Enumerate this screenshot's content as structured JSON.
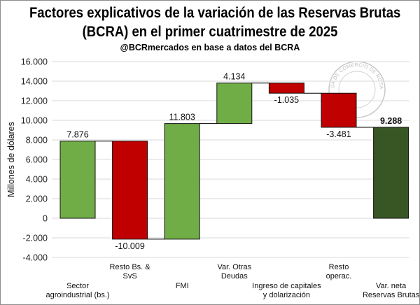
{
  "chart_data": {
    "type": "bar",
    "subtype": "waterfall",
    "title": [
      "Factores explicativos de la variación de las Reservas Brutas",
      "(BCRA) en el primer cuatrimestre de 2025"
    ],
    "subtitle": "@BCRmercados en base a datos del BCRA",
    "ylabel": "Millones de dólares",
    "xlabel": "",
    "ylim": [
      -4000,
      16000
    ],
    "yticks": [
      -4000,
      -2000,
      0,
      2000,
      4000,
      6000,
      8000,
      10000,
      12000,
      14000,
      16000
    ],
    "ytick_labels": [
      "-4.000",
      "-2.000",
      "0",
      "2.000",
      "4.000",
      "6.000",
      "8.000",
      "10.000",
      "12.000",
      "14.000",
      "16.000"
    ],
    "grid": true,
    "legend": "none",
    "colors": {
      "increase": "#70ad47",
      "decrease": "#c00000",
      "total": "#375623",
      "connector": "#000000"
    },
    "watermark": "BOLSA DE COMERCIO DE ROSARIO",
    "categories": [
      {
        "label": [
          "Sector",
          "agroindustrial (bs.)"
        ],
        "label_row": "low"
      },
      {
        "label": [
          "Resto Bs. &",
          "SvS"
        ],
        "label_row": "high"
      },
      {
        "label": [
          "FMI"
        ],
        "label_row": "low"
      },
      {
        "label": [
          "Var. Otras",
          "Deudas"
        ],
        "label_row": "high"
      },
      {
        "label": [
          "Ingreso de capitales",
          "y dolarización"
        ],
        "label_row": "low"
      },
      {
        "label": [
          "Resto",
          "operac."
        ],
        "label_row": "high"
      },
      {
        "label": [
          "Var. neta",
          "Reservas Brutas"
        ],
        "label_row": "low"
      }
    ],
    "values": [
      7876,
      -10009,
      11803,
      4134,
      -1035,
      -3481,
      9288
    ],
    "kinds": [
      "increase",
      "decrease",
      "increase",
      "increase",
      "decrease",
      "decrease",
      "total"
    ],
    "data_labels": [
      "7.876",
      "-10.009",
      "11.803",
      "4.134",
      "-1.035",
      "-3.481",
      "9.288"
    ]
  }
}
